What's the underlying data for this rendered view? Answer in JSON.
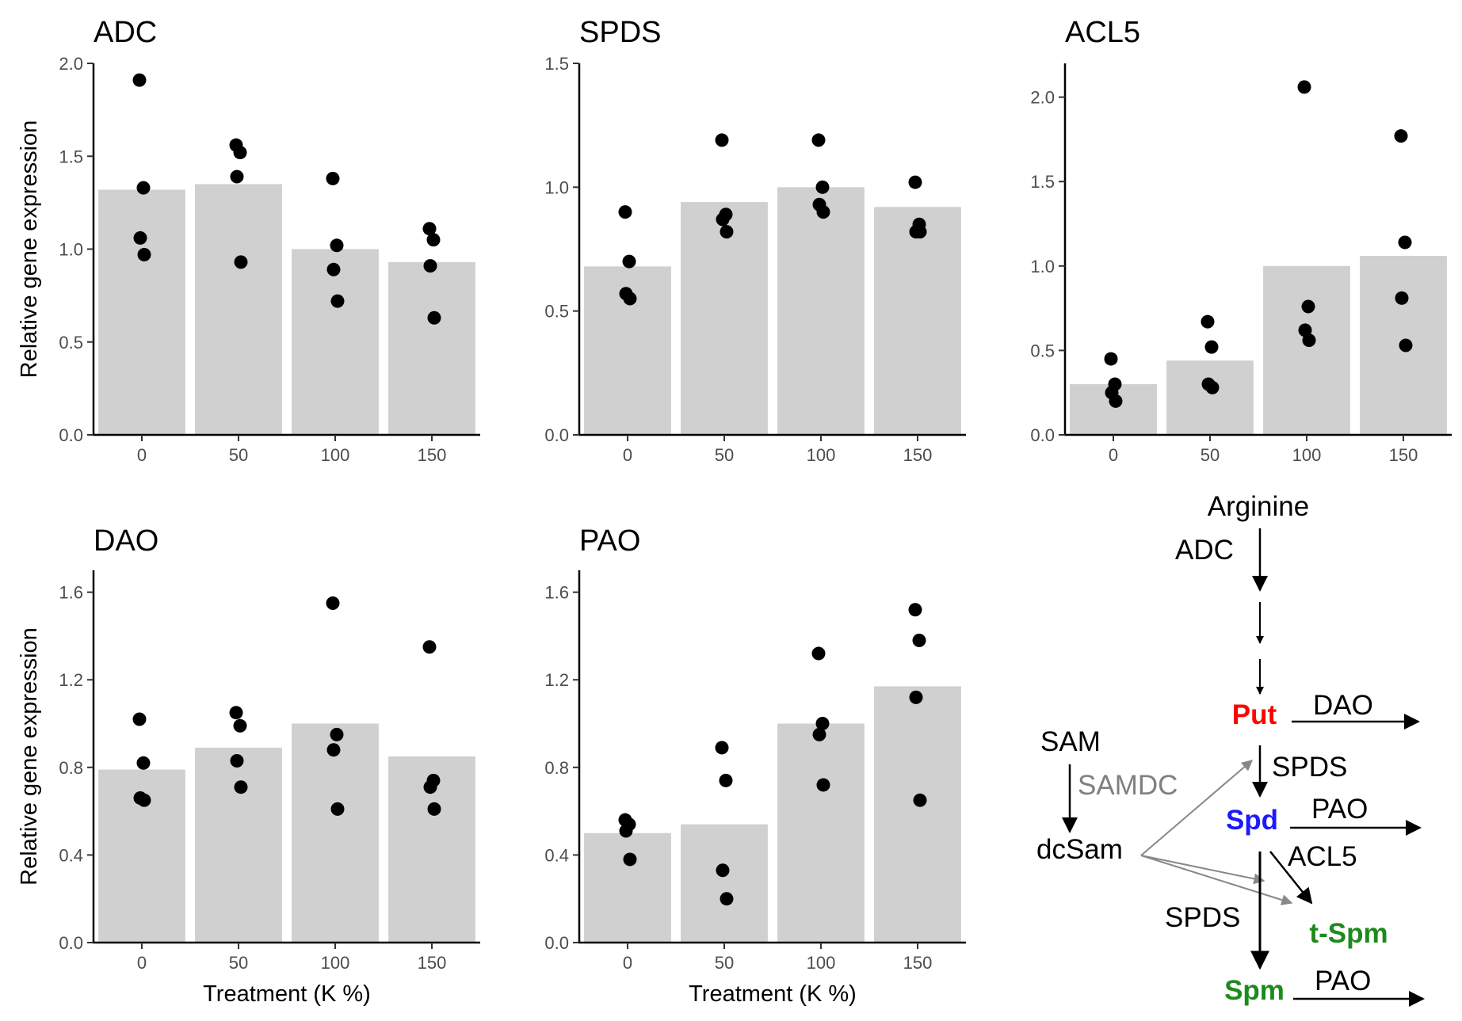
{
  "chart_data": [
    {
      "type": "bar",
      "title": "ADC",
      "categories": [
        "0",
        "50",
        "100",
        "150"
      ],
      "values": [
        1.32,
        1.35,
        1.0,
        0.93
      ],
      "points": [
        [
          1.91,
          1.33,
          1.06,
          0.97
        ],
        [
          1.56,
          1.52,
          1.39,
          0.93
        ],
        [
          1.38,
          1.02,
          0.89,
          0.72
        ],
        [
          1.11,
          1.05,
          0.91,
          0.63
        ]
      ],
      "ylim": [
        0,
        2.0
      ],
      "yticks": [
        "0.0",
        "0.5",
        "1.0",
        "1.5",
        "2.0"
      ],
      "ylabel": "Relative gene expression",
      "xlabel": ""
    },
    {
      "type": "bar",
      "title": "SPDS",
      "categories": [
        "0",
        "50",
        "100",
        "150"
      ],
      "values": [
        0.68,
        0.94,
        1.0,
        0.92
      ],
      "points": [
        [
          0.9,
          0.7,
          0.57,
          0.55
        ],
        [
          1.19,
          0.89,
          0.87,
          0.82
        ],
        [
          1.19,
          1.0,
          0.93,
          0.9
        ],
        [
          1.02,
          0.85,
          0.82,
          0.82
        ]
      ],
      "ylim": [
        0,
        1.5
      ],
      "yticks": [
        "0.0",
        "0.5",
        "1.0",
        "1.5"
      ],
      "ylabel": "",
      "xlabel": ""
    },
    {
      "type": "bar",
      "title": "ACL5",
      "categories": [
        "0",
        "50",
        "100",
        "150"
      ],
      "values": [
        0.3,
        0.44,
        1.0,
        1.06
      ],
      "points": [
        [
          0.45,
          0.3,
          0.25,
          0.2
        ],
        [
          0.67,
          0.52,
          0.3,
          0.28
        ],
        [
          2.06,
          0.76,
          0.62,
          0.56
        ],
        [
          1.77,
          1.14,
          0.81,
          0.53
        ]
      ],
      "ylim": [
        0,
        2.2
      ],
      "yticks": [
        "0.0",
        "0.5",
        "1.0",
        "1.5",
        "2.0"
      ],
      "ylabel": "",
      "xlabel": ""
    },
    {
      "type": "bar",
      "title": "DAO",
      "categories": [
        "0",
        "50",
        "100",
        "150"
      ],
      "values": [
        0.79,
        0.89,
        1.0,
        0.85
      ],
      "points": [
        [
          1.02,
          0.82,
          0.66,
          0.65
        ],
        [
          1.05,
          0.99,
          0.83,
          0.71
        ],
        [
          1.55,
          0.95,
          0.88,
          0.61
        ],
        [
          1.35,
          0.74,
          0.71,
          0.61
        ]
      ],
      "ylim": [
        0,
        1.7
      ],
      "yticks": [
        "0.0",
        "0.4",
        "0.8",
        "1.2",
        "1.6"
      ],
      "ylabel": "Relative gene expression",
      "xlabel": "Treatment (K %)"
    },
    {
      "type": "bar",
      "title": "PAO",
      "categories": [
        "0",
        "50",
        "100",
        "150"
      ],
      "values": [
        0.5,
        0.54,
        1.0,
        1.17
      ],
      "points": [
        [
          0.56,
          0.54,
          0.51,
          0.38
        ],
        [
          0.89,
          0.74,
          0.33,
          0.2
        ],
        [
          1.32,
          1.0,
          0.95,
          0.72
        ],
        [
          1.52,
          1.38,
          1.12,
          0.65
        ]
      ],
      "ylim": [
        0,
        1.7
      ],
      "yticks": [
        "0.0",
        "0.4",
        "0.8",
        "1.2",
        "1.6"
      ],
      "ylabel": "",
      "xlabel": "Treatment (K %)"
    }
  ],
  "pathway": {
    "arginine": "Arginine",
    "adc": "ADC",
    "put": "Put",
    "dao": "DAO",
    "sam": "SAM",
    "samdc": "SAMDC",
    "spds1": "SPDS",
    "spd": "Spd",
    "pao1": "PAO",
    "dcsam": "dcSam",
    "acl5": "ACL5",
    "spds2": "SPDS",
    "tspm": "t-Spm",
    "spm": "Spm",
    "pao2": "PAO",
    "colors": {
      "put": "#ff0000",
      "spd": "#1a1aff",
      "spm": "#1e8a1e",
      "samdc": "#808080"
    }
  },
  "colors": {
    "bar": "#d0d0d0",
    "point": "#000000"
  }
}
